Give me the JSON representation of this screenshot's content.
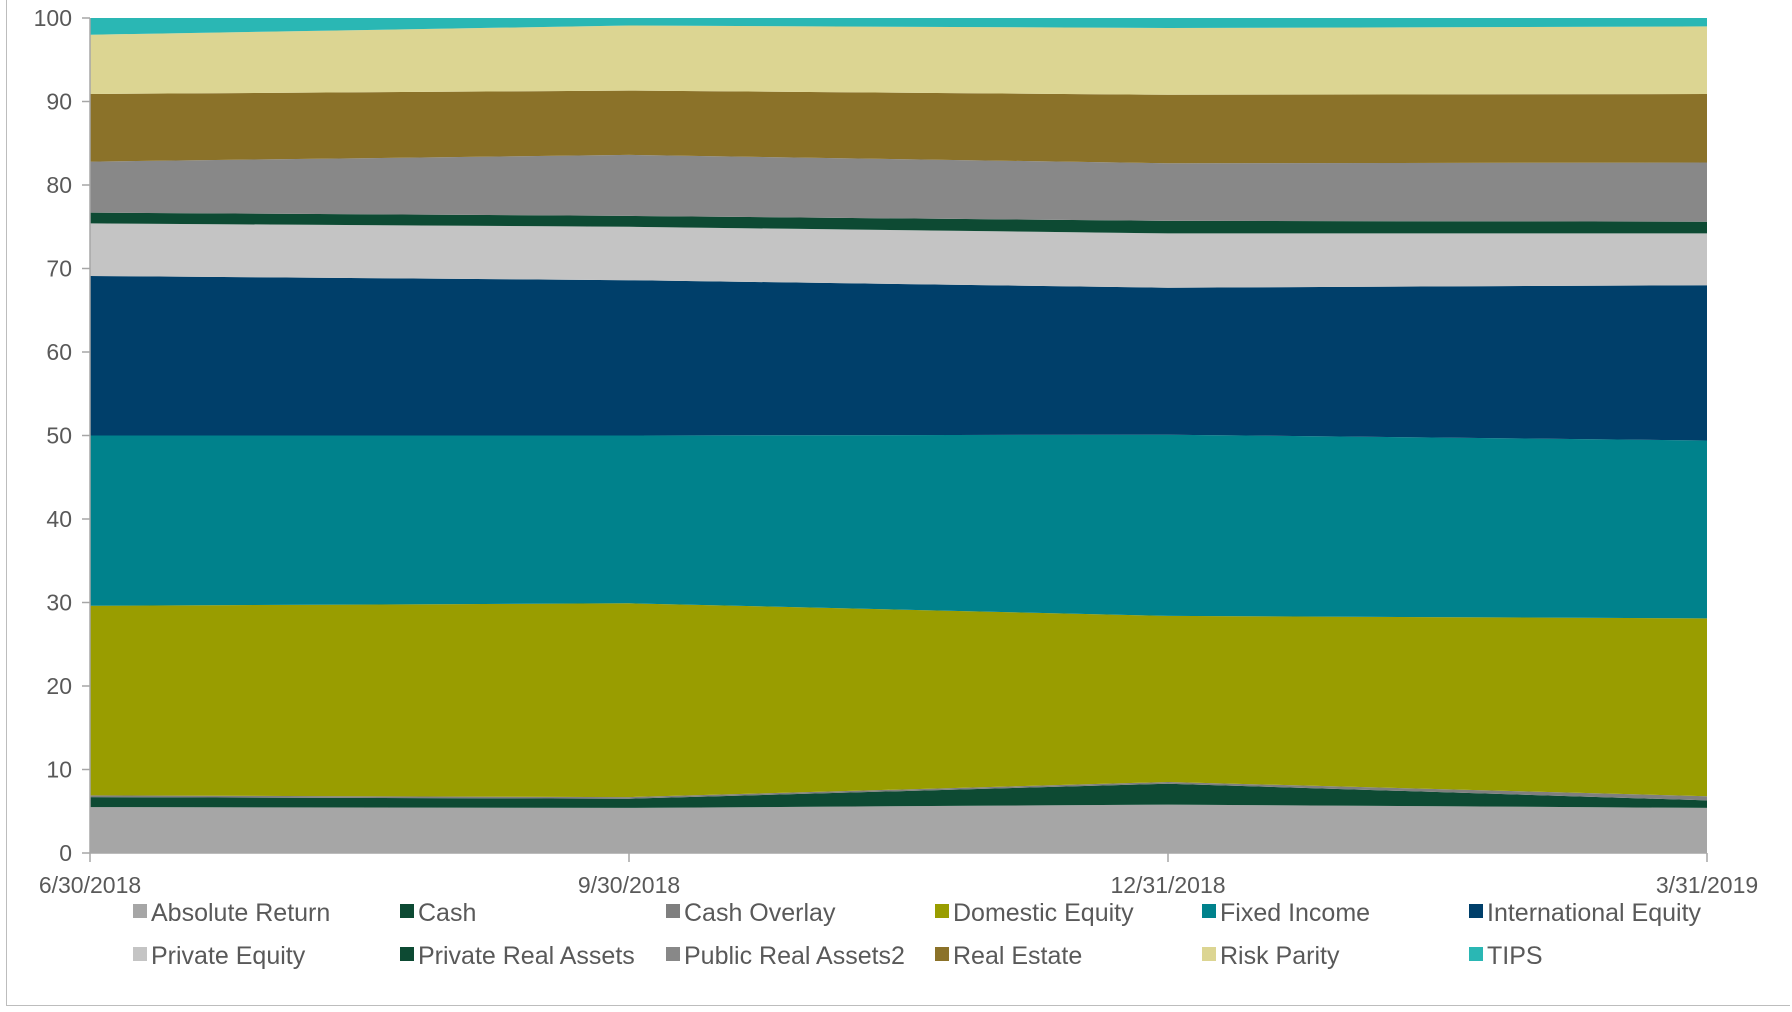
{
  "chart_data": {
    "type": "area",
    "stacked": true,
    "title": "",
    "xlabel": "",
    "ylabel": "",
    "ylim": [
      0,
      100
    ],
    "yticks": [
      0,
      10,
      20,
      30,
      40,
      50,
      60,
      70,
      80,
      90,
      100
    ],
    "x": [
      "6/30/2018",
      "9/30/2018",
      "12/31/2018",
      "3/31/2019"
    ],
    "grid": false,
    "legend_position": "bottom",
    "series": [
      {
        "name": "Absolute Return",
        "color": "#a6a6a6",
        "values": [
          5.5,
          5.4,
          5.8,
          5.4
        ]
      },
      {
        "name": "Cash",
        "color": "#0d4a33",
        "values": [
          1.2,
          1.1,
          2.5,
          0.9
        ]
      },
      {
        "name": "Cash Overlay",
        "color": "#7f7f7f",
        "values": [
          0.2,
          0.2,
          0.2,
          0.5
        ]
      },
      {
        "name": "Domestic Equity",
        "color": "#999d00",
        "values": [
          22.7,
          23.2,
          19.9,
          21.3
        ]
      },
      {
        "name": "Fixed Income",
        "color": "#00828c",
        "values": [
          20.4,
          20.1,
          21.7,
          21.3
        ]
      },
      {
        "name": "International Equity",
        "color": "#003f6a",
        "values": [
          19.1,
          18.6,
          17.6,
          18.6
        ]
      },
      {
        "name": "Private Equity",
        "color": "#c4c4c4",
        "values": [
          6.3,
          6.4,
          6.5,
          6.2
        ]
      },
      {
        "name": "Private Real Assets",
        "color": "#0d4a33",
        "values": [
          1.3,
          1.3,
          1.5,
          1.4
        ]
      },
      {
        "name": "Public Real Assets2",
        "color": "#888888",
        "values": [
          6.1,
          7.3,
          6.9,
          7.1
        ]
      },
      {
        "name": "Real Estate",
        "color": "#8b7229",
        "values": [
          8.1,
          7.7,
          8.2,
          8.2
        ]
      },
      {
        "name": "Risk Parity",
        "color": "#dcd592",
        "values": [
          7.1,
          7.8,
          8.0,
          8.1
        ]
      },
      {
        "name": "TIPS",
        "color": "#2ab7b4",
        "values": [
          2.0,
          0.9,
          1.2,
          1.0
        ]
      }
    ]
  }
}
